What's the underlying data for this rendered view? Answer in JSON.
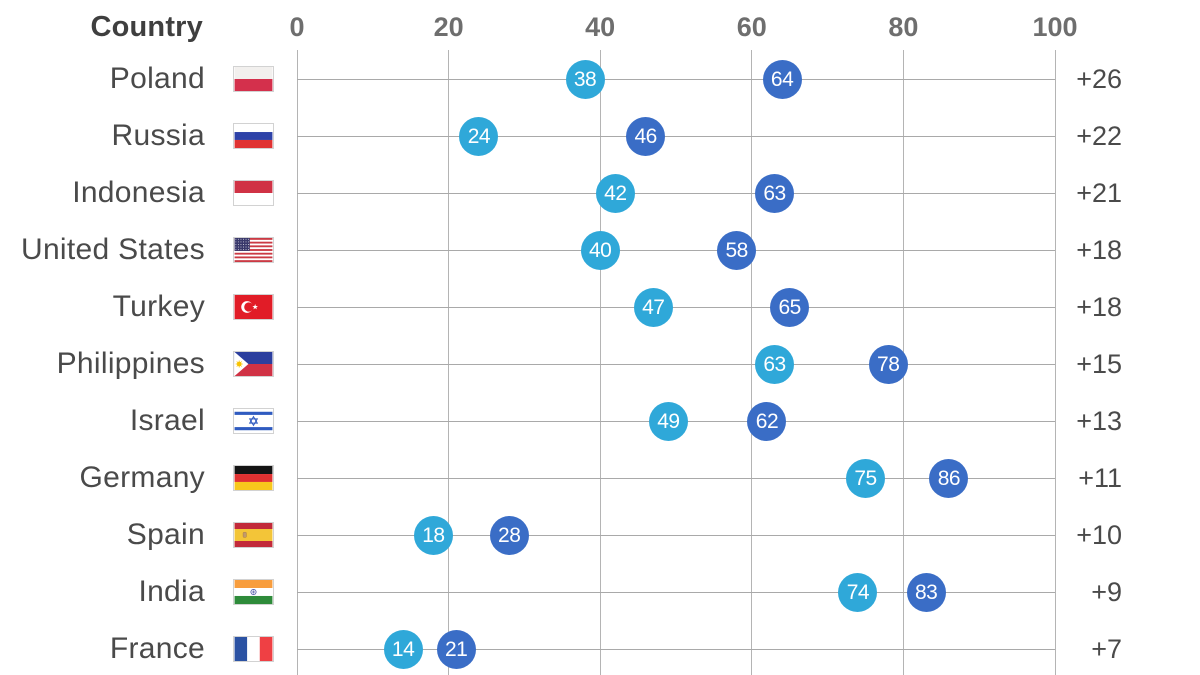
{
  "header": {
    "country_label": "Country"
  },
  "colors": {
    "first_dot": "#2fa8d9",
    "second_dot": "#3a6dc6",
    "gridline": "#b4b4b4",
    "row_line": "#a9a9a9"
  },
  "chart_data": {
    "type": "dumbbell-dot-plot",
    "x_axis": {
      "min": 0,
      "max": 100,
      "ticks": [
        0,
        20,
        40,
        60,
        80,
        100
      ]
    },
    "columns": {
      "country": "Country",
      "diff_column": ""
    },
    "series": [
      {
        "name": "first-value",
        "color": "#2fa8d9"
      },
      {
        "name": "second-value",
        "color": "#3a6dc6"
      }
    ],
    "rows": [
      {
        "country": "Poland",
        "flag": "poland",
        "first": 38,
        "second": 64,
        "diff": "+26"
      },
      {
        "country": "Russia",
        "flag": "russia",
        "first": 24,
        "second": 46,
        "diff": "+22"
      },
      {
        "country": "Indonesia",
        "flag": "indonesia",
        "first": 42,
        "second": 63,
        "diff": "+21"
      },
      {
        "country": "United States",
        "flag": "united-states",
        "first": 40,
        "second": 58,
        "diff": "+18"
      },
      {
        "country": "Turkey",
        "flag": "turkey",
        "first": 47,
        "second": 65,
        "diff": "+18"
      },
      {
        "country": "Philippines",
        "flag": "philippines",
        "first": 63,
        "second": 78,
        "diff": "+15"
      },
      {
        "country": "Israel",
        "flag": "israel",
        "first": 49,
        "second": 62,
        "diff": "+13"
      },
      {
        "country": "Germany",
        "flag": "germany",
        "first": 75,
        "second": 86,
        "diff": "+11"
      },
      {
        "country": "Spain",
        "flag": "spain",
        "first": 18,
        "second": 28,
        "diff": "+10"
      },
      {
        "country": "India",
        "flag": "india",
        "first": 74,
        "second": 83,
        "diff": "+9"
      },
      {
        "country": "France",
        "flag": "france",
        "first": 14,
        "second": 21,
        "diff": "+7"
      }
    ]
  }
}
